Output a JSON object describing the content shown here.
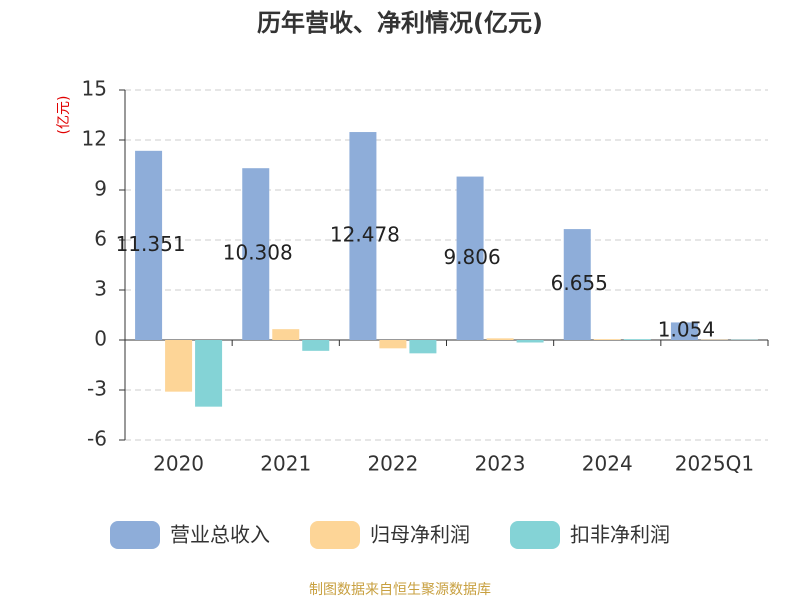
{
  "chart_data": {
    "type": "bar",
    "title": "历年营收、净利情况(亿元)",
    "y_label": "(亿元)",
    "categories": [
      "2020",
      "2021",
      "2022",
      "2023",
      "2024",
      "2025Q1"
    ],
    "series": [
      {
        "name": "营业总收入",
        "color": "#8eadd9",
        "values": [
          11.351,
          10.308,
          12.478,
          9.806,
          6.655,
          1.054
        ],
        "show_labels": true
      },
      {
        "name": "归母净利润",
        "color": "#fdd597",
        "values": [
          -3.1,
          0.65,
          -0.5,
          0.1,
          0.05,
          0.02
        ]
      },
      {
        "name": "扣非净利润",
        "color": "#84d3d6",
        "values": [
          -4.0,
          -0.65,
          -0.8,
          -0.15,
          0.05,
          0.02
        ]
      }
    ],
    "ylim": [
      -6,
      15
    ],
    "yticks": [
      -6,
      -3,
      0,
      3,
      6,
      9,
      12,
      15
    ],
    "grid": true,
    "source": "制图数据来自恒生聚源数据库"
  }
}
